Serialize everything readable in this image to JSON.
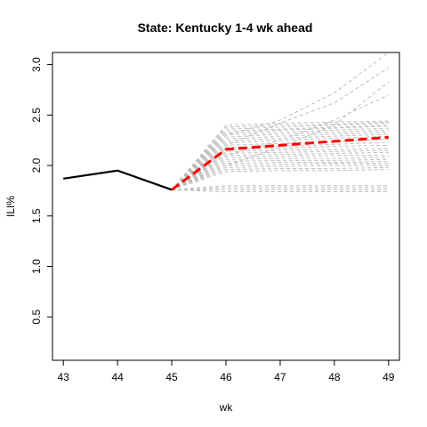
{
  "chart_data": {
    "type": "line",
    "title": "State: Kentucky 1-4 wk ahead",
    "xlabel": "wk",
    "ylabel": "ILI%",
    "xlim": [
      42.8,
      49.2
    ],
    "ylim": [
      0.07,
      3.12
    ],
    "x_ticks": [
      43,
      44,
      45,
      46,
      47,
      48,
      49
    ],
    "y_ticks": [
      0.5,
      1.0,
      1.5,
      2.0,
      2.5,
      3.0
    ],
    "x_tick_labels": [
      "43",
      "44",
      "45",
      "46",
      "47",
      "48",
      "49"
    ],
    "y_tick_labels": [
      "0.5",
      "1.0",
      "1.5",
      "2.0",
      "2.5",
      "3.0"
    ],
    "grid": false,
    "colors": {
      "observed": "#000000",
      "forecast_mean": "#ff0000",
      "simulations": "#bebebe"
    },
    "observed": {
      "x": [
        43,
        44,
        45
      ],
      "y": [
        1.87,
        1.95,
        1.76
      ]
    },
    "forecast_mean": {
      "x": [
        45,
        46,
        47,
        48,
        49
      ],
      "y": [
        1.76,
        2.16,
        2.2,
        2.24,
        2.28
      ]
    },
    "simulations": {
      "x": [
        45,
        46,
        47,
        48,
        49
      ],
      "paths": [
        [
          1.76,
          2.4,
          2.42,
          2.43,
          2.44
        ],
        [
          1.76,
          2.38,
          2.4,
          2.41,
          2.43
        ],
        [
          1.76,
          2.36,
          2.38,
          2.4,
          2.42
        ],
        [
          1.76,
          2.34,
          2.36,
          2.38,
          2.4
        ],
        [
          1.76,
          2.32,
          2.35,
          2.37,
          2.39
        ],
        [
          1.76,
          2.3,
          2.33,
          2.35,
          2.37
        ],
        [
          1.76,
          2.28,
          2.31,
          2.33,
          2.35
        ],
        [
          1.76,
          2.26,
          2.29,
          2.31,
          2.33
        ],
        [
          1.76,
          2.24,
          2.27,
          2.29,
          2.31
        ],
        [
          1.76,
          2.22,
          2.25,
          2.27,
          2.29
        ],
        [
          1.76,
          2.2,
          2.22,
          2.24,
          2.26
        ],
        [
          1.76,
          2.18,
          2.19,
          2.21,
          2.23
        ],
        [
          1.76,
          2.16,
          2.17,
          2.19,
          2.2
        ],
        [
          1.76,
          2.14,
          2.15,
          2.16,
          2.17
        ],
        [
          1.76,
          2.12,
          2.13,
          2.14,
          2.15
        ],
        [
          1.76,
          2.1,
          2.11,
          2.12,
          2.13
        ],
        [
          1.76,
          2.08,
          2.09,
          2.1,
          2.1
        ],
        [
          1.76,
          2.06,
          2.07,
          2.07,
          2.08
        ],
        [
          1.76,
          2.04,
          2.05,
          2.05,
          2.06
        ],
        [
          1.76,
          2.02,
          2.03,
          2.03,
          2.04
        ],
        [
          1.76,
          2.0,
          2.01,
          2.02,
          2.02
        ],
        [
          1.76,
          1.98,
          1.99,
          2.0,
          2.0
        ],
        [
          1.76,
          1.96,
          1.97,
          1.97,
          1.98
        ],
        [
          1.76,
          1.94,
          1.95,
          1.95,
          1.96
        ],
        [
          1.76,
          1.8,
          1.8,
          1.8,
          1.8
        ],
        [
          1.76,
          1.78,
          1.78,
          1.78,
          1.78
        ],
        [
          1.76,
          1.76,
          1.76,
          1.76,
          1.76
        ],
        [
          1.76,
          1.74,
          1.74,
          1.74,
          1.74
        ],
        [
          1.76,
          2.3,
          2.45,
          2.72,
          3.12
        ],
        [
          1.76,
          2.2,
          2.42,
          2.62,
          2.97
        ],
        [
          1.76,
          2.0,
          2.18,
          2.4,
          2.83
        ],
        [
          1.76,
          2.1,
          2.25,
          2.45,
          2.7
        ]
      ]
    }
  }
}
